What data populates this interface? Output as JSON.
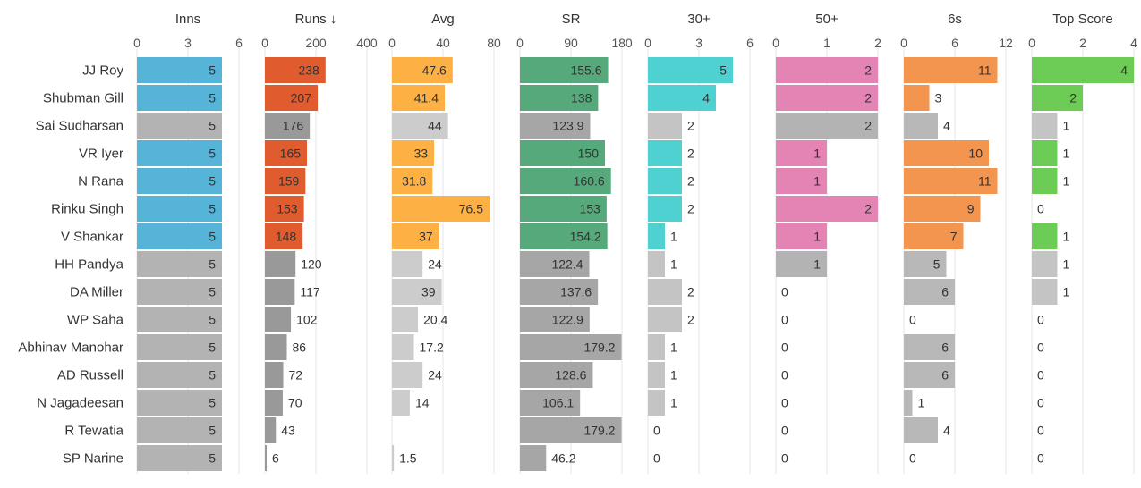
{
  "chart_data": {
    "type": "bar",
    "orientation": "horizontal",
    "sort_column": "Runs",
    "sort_indicator": "↓",
    "players": [
      "JJ Roy",
      "Shubman Gill",
      "Sai Sudharsan",
      "VR Iyer",
      "N Rana",
      "Rinku Singh",
      "V Shankar",
      "HH Pandya",
      "DA Miller",
      "WP Saha",
      "Abhinav Manohar",
      "AD Russell",
      "N Jagadeesan",
      "R Tewatia",
      "SP Narine"
    ],
    "highlight_flags": [
      [
        true,
        true,
        false,
        true,
        true,
        true,
        true,
        false,
        false,
        false,
        false,
        false,
        false,
        false,
        false
      ],
      [
        true,
        true,
        false,
        true,
        true,
        true,
        true,
        false,
        false,
        false,
        false,
        false,
        false,
        false,
        false
      ],
      [
        true,
        true,
        false,
        true,
        true,
        true,
        true,
        false,
        false,
        false,
        false,
        false,
        false,
        false,
        false
      ],
      [
        true,
        true,
        false,
        true,
        true,
        true,
        true,
        false,
        false,
        false,
        false,
        false,
        false,
        false,
        false
      ],
      [
        true,
        true,
        false,
        true,
        true,
        true,
        true,
        false,
        false,
        false,
        false,
        false,
        false,
        false,
        false
      ],
      [
        true,
        true,
        false,
        true,
        true,
        true,
        true,
        false,
        false,
        false,
        false,
        false,
        false,
        false,
        false
      ],
      [
        true,
        true,
        false,
        true,
        true,
        true,
        true,
        false,
        false,
        false,
        false,
        false,
        false,
        false,
        false
      ],
      [
        true,
        true,
        false,
        true,
        true,
        true,
        true,
        false,
        false,
        false,
        false,
        false,
        false,
        false,
        false
      ]
    ],
    "columns": [
      {
        "name": "Inns",
        "title": "Inns",
        "ticks": [
          0,
          3,
          6
        ],
        "tick_labels": [
          "0",
          "3",
          "6"
        ],
        "xlim": [
          0,
          6
        ],
        "color": "#56b4d9",
        "muted_color": "#b3b3b3",
        "values": [
          5,
          5,
          5,
          5,
          5,
          5,
          5,
          5,
          5,
          5,
          5,
          5,
          5,
          5,
          5
        ],
        "labels": [
          "5",
          "5",
          "5",
          "5",
          "5",
          "5",
          "5",
          "5",
          "5",
          "5",
          "5",
          "5",
          "5",
          "5",
          "5"
        ]
      },
      {
        "name": "Runs",
        "title": "Runs ↓",
        "ticks": [
          0,
          200,
          400
        ],
        "tick_labels": [
          "0",
          "200",
          "400"
        ],
        "xlim": [
          0,
          400
        ],
        "color": "#e05c2e",
        "muted_color": "#999999",
        "values": [
          238,
          207,
          176,
          165,
          159,
          153,
          148,
          120,
          117,
          102,
          86,
          72,
          70,
          43,
          6
        ],
        "labels": [
          "238",
          "207",
          "176",
          "165",
          "159",
          "153",
          "148",
          "120",
          "117",
          "102",
          "86",
          "72",
          "70",
          "43",
          "6"
        ]
      },
      {
        "name": "Avg",
        "title": "Avg",
        "ticks": [
          0,
          40,
          80
        ],
        "tick_labels": [
          "0",
          "40",
          "80"
        ],
        "xlim": [
          0,
          80
        ],
        "color": "#fdb043",
        "muted_color": "#cccccc",
        "values": [
          47.6,
          41.4,
          44,
          33,
          31.8,
          76.5,
          37,
          24,
          39,
          20.4,
          17.2,
          24,
          14,
          null,
          1.5
        ],
        "labels": [
          "47.6",
          "41.4",
          "44",
          "33",
          "31.8",
          "76.5",
          "37",
          "24",
          "39",
          "20.4",
          "17.2",
          "24",
          "14",
          "",
          "1.5"
        ]
      },
      {
        "name": "SR",
        "title": "SR",
        "ticks": [
          0,
          90,
          180
        ],
        "tick_labels": [
          "0",
          "90",
          "180"
        ],
        "xlim": [
          0,
          180
        ],
        "color": "#56a97a",
        "muted_color": "#a6a6a6",
        "values": [
          155.6,
          138,
          123.9,
          150,
          160.6,
          153,
          154.2,
          122.4,
          137.6,
          122.9,
          179.2,
          128.6,
          106.1,
          179.2,
          46.2
        ],
        "labels": [
          "155.6",
          "138",
          "123.9",
          "150",
          "160.6",
          "153",
          "154.2",
          "122.4",
          "137.6",
          "122.9",
          "179.2",
          "128.6",
          "106.1",
          "179.2",
          "46.2"
        ]
      },
      {
        "name": "30+",
        "title": "30+",
        "ticks": [
          0,
          3,
          6
        ],
        "tick_labels": [
          "0",
          "3",
          "6"
        ],
        "xlim": [
          0,
          6
        ],
        "color": "#4fd1d2",
        "muted_color": "#c4c4c4",
        "values": [
          5,
          4,
          2,
          2,
          2,
          2,
          1,
          1,
          2,
          2,
          1,
          1,
          1,
          0,
          0
        ],
        "labels": [
          "5",
          "4",
          "2",
          "2",
          "2",
          "2",
          "1",
          "1",
          "2",
          "2",
          "1",
          "1",
          "1",
          "0",
          "0"
        ]
      },
      {
        "name": "50+",
        "title": "50+",
        "ticks": [
          0,
          1,
          2
        ],
        "tick_labels": [
          "0",
          "1",
          "2"
        ],
        "xlim": [
          0,
          2
        ],
        "color": "#e484b5",
        "muted_color": "#b3b3b3",
        "values": [
          2,
          2,
          2,
          1,
          1,
          2,
          1,
          1,
          0,
          0,
          0,
          0,
          0,
          0,
          0
        ],
        "labels": [
          "2",
          "2",
          "2",
          "1",
          "1",
          "2",
          "1",
          "1",
          "0",
          "0",
          "0",
          "0",
          "0",
          "0",
          "0"
        ]
      },
      {
        "name": "6s",
        "title": "6s",
        "ticks": [
          0,
          6,
          12
        ],
        "tick_labels": [
          "0",
          "6",
          "12"
        ],
        "xlim": [
          0,
          12
        ],
        "color": "#f3954f",
        "muted_color": "#b8b8b8",
        "values": [
          11,
          3,
          4,
          10,
          11,
          9,
          7,
          5,
          6,
          0,
          6,
          6,
          1,
          4,
          0
        ],
        "labels": [
          "11",
          "3",
          "4",
          "10",
          "11",
          "9",
          "7",
          "5",
          "6",
          "0",
          "6",
          "6",
          "1",
          "4",
          "0"
        ]
      },
      {
        "name": "Top Score",
        "title": "Top Score",
        "ticks": [
          0,
          2,
          4
        ],
        "tick_labels": [
          "0",
          "2",
          "4"
        ],
        "xlim": [
          0,
          4
        ],
        "color": "#6dcc55",
        "muted_color": "#c4c4c4",
        "values": [
          4,
          2,
          1,
          1,
          1,
          0,
          1,
          1,
          1,
          0,
          0,
          0,
          0,
          0,
          0
        ],
        "labels": [
          "4",
          "2",
          "1",
          "1",
          "1",
          "0",
          "1",
          "1",
          "1",
          "0",
          "0",
          "0",
          "0",
          "0",
          "0"
        ]
      }
    ]
  }
}
